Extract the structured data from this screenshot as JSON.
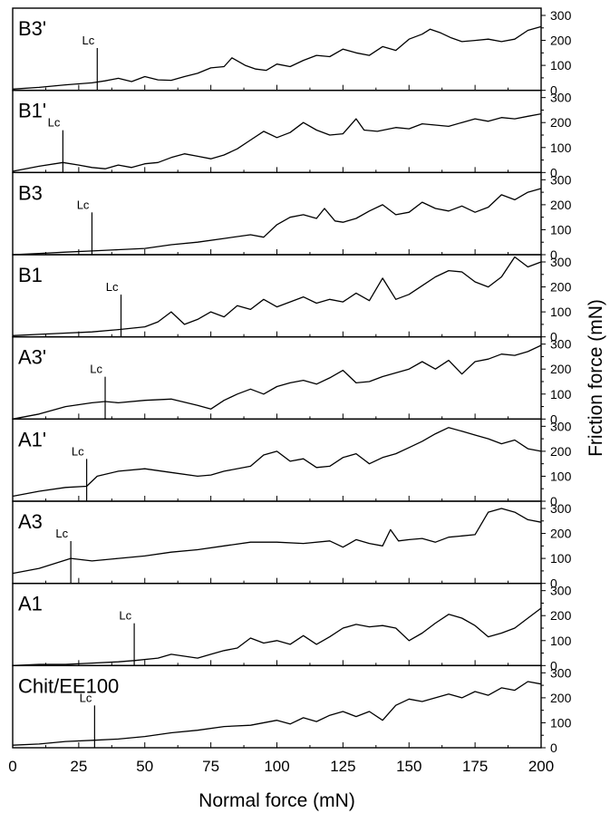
{
  "chart_data": {
    "type": "line",
    "xlabel": "Normal force (mN)",
    "ylabel": "Friction force (mN)",
    "xlim": [
      0,
      200
    ],
    "ylim": [
      0,
      300
    ],
    "x_ticks": [
      "0",
      "25",
      "50",
      "75",
      "100",
      "125",
      "150",
      "175",
      "200"
    ],
    "y_ticks": [
      "0",
      "100",
      "200",
      "300"
    ],
    "grid": false,
    "layout": "nine vertically stacked panels sharing the x axis; y axis on the right",
    "marker_label": "Lc",
    "panels": [
      {
        "name": "B3'",
        "lc": 32,
        "x": [
          0,
          10,
          20,
          30,
          35,
          40,
          45,
          50,
          55,
          60,
          65,
          70,
          75,
          80,
          83,
          88,
          92,
          96,
          100,
          105,
          110,
          115,
          120,
          125,
          130,
          135,
          140,
          145,
          150,
          155,
          158,
          162,
          166,
          170,
          175,
          180,
          185,
          190,
          195,
          200
        ],
        "y": [
          5,
          12,
          22,
          30,
          38,
          48,
          35,
          55,
          42,
          40,
          55,
          68,
          90,
          95,
          130,
          100,
          85,
          80,
          105,
          95,
          120,
          140,
          135,
          165,
          150,
          140,
          175,
          160,
          205,
          225,
          245,
          230,
          210,
          195,
          200,
          205,
          195,
          205,
          240,
          255
        ]
      },
      {
        "name": "B1'",
        "lc": 19,
        "x": [
          0,
          10,
          19,
          25,
          30,
          35,
          40,
          45,
          50,
          55,
          60,
          65,
          70,
          75,
          80,
          85,
          90,
          95,
          100,
          105,
          110,
          115,
          120,
          125,
          130,
          133,
          138,
          145,
          150,
          155,
          160,
          165,
          170,
          175,
          180,
          185,
          190,
          195,
          200
        ],
        "y": [
          5,
          25,
          40,
          30,
          20,
          15,
          30,
          20,
          35,
          40,
          60,
          75,
          65,
          55,
          70,
          95,
          130,
          165,
          140,
          160,
          200,
          170,
          150,
          155,
          215,
          170,
          165,
          180,
          175,
          195,
          190,
          185,
          200,
          215,
          205,
          220,
          215,
          225,
          235
        ]
      },
      {
        "name": "B3",
        "lc": 30,
        "x": [
          0,
          10,
          20,
          30,
          40,
          50,
          60,
          70,
          80,
          90,
          95,
          100,
          105,
          110,
          115,
          118,
          122,
          125,
          130,
          135,
          140,
          145,
          150,
          155,
          160,
          165,
          170,
          175,
          180,
          185,
          190,
          195,
          200
        ],
        "y": [
          0,
          5,
          10,
          15,
          20,
          25,
          40,
          50,
          65,
          80,
          70,
          120,
          150,
          160,
          145,
          185,
          135,
          130,
          145,
          175,
          200,
          160,
          170,
          210,
          185,
          175,
          195,
          170,
          190,
          240,
          220,
          250,
          265
        ]
      },
      {
        "name": "B1",
        "lc": 41,
        "x": [
          0,
          10,
          20,
          30,
          41,
          50,
          55,
          60,
          65,
          70,
          75,
          80,
          85,
          90,
          95,
          100,
          105,
          110,
          115,
          120,
          125,
          130,
          135,
          140,
          145,
          150,
          155,
          160,
          165,
          170,
          175,
          180,
          185,
          190,
          195,
          200
        ],
        "y": [
          5,
          10,
          15,
          20,
          30,
          40,
          60,
          100,
          50,
          70,
          100,
          80,
          125,
          110,
          150,
          120,
          140,
          160,
          135,
          150,
          140,
          175,
          145,
          235,
          150,
          170,
          205,
          240,
          265,
          260,
          220,
          200,
          240,
          320,
          280,
          300
        ]
      },
      {
        "name": "A3'",
        "lc": 35,
        "x": [
          0,
          10,
          20,
          30,
          35,
          40,
          50,
          60,
          70,
          75,
          80,
          85,
          90,
          95,
          100,
          105,
          110,
          115,
          120,
          125,
          130,
          135,
          140,
          145,
          150,
          155,
          160,
          165,
          170,
          175,
          180,
          185,
          190,
          195,
          200
        ],
        "y": [
          0,
          20,
          50,
          65,
          70,
          65,
          75,
          80,
          55,
          40,
          75,
          100,
          120,
          100,
          130,
          145,
          155,
          140,
          165,
          195,
          145,
          150,
          170,
          185,
          200,
          230,
          200,
          235,
          180,
          230,
          240,
          260,
          255,
          270,
          295
        ]
      },
      {
        "name": "A1'",
        "lc": 28,
        "x": [
          0,
          10,
          20,
          28,
          32,
          40,
          50,
          60,
          70,
          75,
          80,
          90,
          95,
          100,
          105,
          110,
          115,
          120,
          125,
          130,
          135,
          140,
          145,
          150,
          155,
          160,
          165,
          170,
          175,
          180,
          185,
          190,
          195,
          200
        ],
        "y": [
          20,
          40,
          55,
          60,
          100,
          120,
          130,
          115,
          100,
          105,
          120,
          140,
          185,
          200,
          160,
          170,
          135,
          140,
          175,
          190,
          150,
          175,
          190,
          215,
          240,
          270,
          295,
          280,
          265,
          250,
          230,
          245,
          210,
          200
        ]
      },
      {
        "name": "A3",
        "lc": 22,
        "x": [
          0,
          10,
          22,
          30,
          40,
          50,
          60,
          70,
          80,
          90,
          100,
          110,
          120,
          125,
          130,
          135,
          140,
          143,
          146,
          150,
          155,
          160,
          165,
          170,
          175,
          180,
          185,
          190,
          195,
          200
        ],
        "y": [
          40,
          60,
          100,
          90,
          100,
          110,
          125,
          135,
          150,
          165,
          165,
          160,
          170,
          145,
          175,
          160,
          150,
          215,
          170,
          175,
          180,
          165,
          185,
          190,
          195,
          285,
          300,
          285,
          255,
          245
        ]
      },
      {
        "name": "A1",
        "lc": 46,
        "x": [
          0,
          10,
          20,
          30,
          40,
          46,
          55,
          60,
          70,
          75,
          80,
          85,
          90,
          95,
          100,
          105,
          110,
          115,
          120,
          125,
          130,
          135,
          140,
          145,
          150,
          155,
          160,
          165,
          170,
          175,
          180,
          185,
          190,
          195,
          200
        ],
        "y": [
          0,
          5,
          5,
          10,
          15,
          20,
          30,
          45,
          30,
          45,
          60,
          70,
          110,
          90,
          100,
          85,
          120,
          85,
          115,
          150,
          165,
          155,
          160,
          150,
          100,
          130,
          170,
          205,
          190,
          160,
          115,
          130,
          150,
          190,
          230
        ]
      },
      {
        "name": "Chit/EE100",
        "lc": 31,
        "x": [
          0,
          10,
          20,
          31,
          40,
          50,
          60,
          70,
          80,
          90,
          100,
          105,
          110,
          115,
          120,
          125,
          130,
          135,
          140,
          145,
          150,
          155,
          160,
          165,
          170,
          175,
          180,
          185,
          190,
          195,
          200
        ],
        "y": [
          10,
          15,
          25,
          30,
          35,
          45,
          60,
          70,
          85,
          90,
          110,
          95,
          120,
          105,
          130,
          145,
          125,
          145,
          110,
          170,
          195,
          185,
          200,
          215,
          200,
          225,
          210,
          240,
          230,
          265,
          255
        ]
      }
    ]
  }
}
